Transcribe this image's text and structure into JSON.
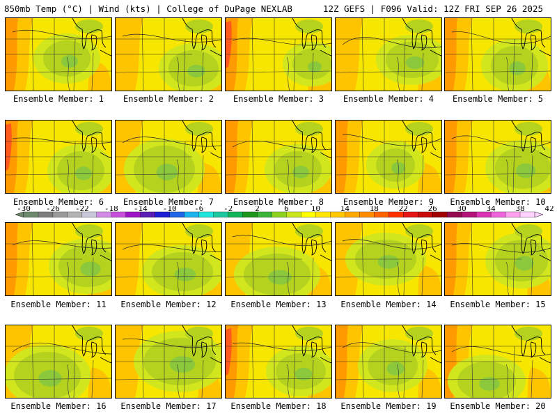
{
  "header": {
    "left": "850mb Temp (°C) | Wind (kts) | College of DuPage NEXLAB",
    "right": "12Z GEFS | F096 Valid: 12Z FRI SEP 26 2025"
  },
  "member_prefix": "Ensemble Member: ",
  "members": [
    "1",
    "2",
    "3",
    "4",
    "5",
    "6",
    "7",
    "8",
    "9",
    "10",
    "11",
    "12",
    "13",
    "14",
    "15",
    "16",
    "17",
    "18",
    "19",
    "20"
  ],
  "colorbar": {
    "labels": [
      "-30",
      "-26",
      "-22",
      "-18",
      "-14",
      "-10",
      "-6",
      "-2",
      "2",
      "6",
      "10",
      "14",
      "18",
      "22",
      "26",
      "30",
      "34",
      "38",
      "42"
    ],
    "colors": [
      "#6e8a6e",
      "#7e7e7e",
      "#9a9a9a",
      "#b4b4b4",
      "#c8c8dc",
      "#d28ce6",
      "#c850dc",
      "#a014c8",
      "#5a1eb4",
      "#1e1ed2",
      "#1e64e6",
      "#1eb4f0",
      "#1ee6dc",
      "#1ec8a0",
      "#14b45a",
      "#1e961e",
      "#3cb43c",
      "#8cd21e",
      "#c8e61e",
      "#ffff00",
      "#ffe600",
      "#ffc800",
      "#ffaa00",
      "#ff8c00",
      "#ff6400",
      "#ff3200",
      "#e61414",
      "#c80a0a",
      "#a00000",
      "#960a50",
      "#b4147a",
      "#dc32b4",
      "#f064dc",
      "#ffa0f0",
      "#ffd2ff"
    ]
  }
}
